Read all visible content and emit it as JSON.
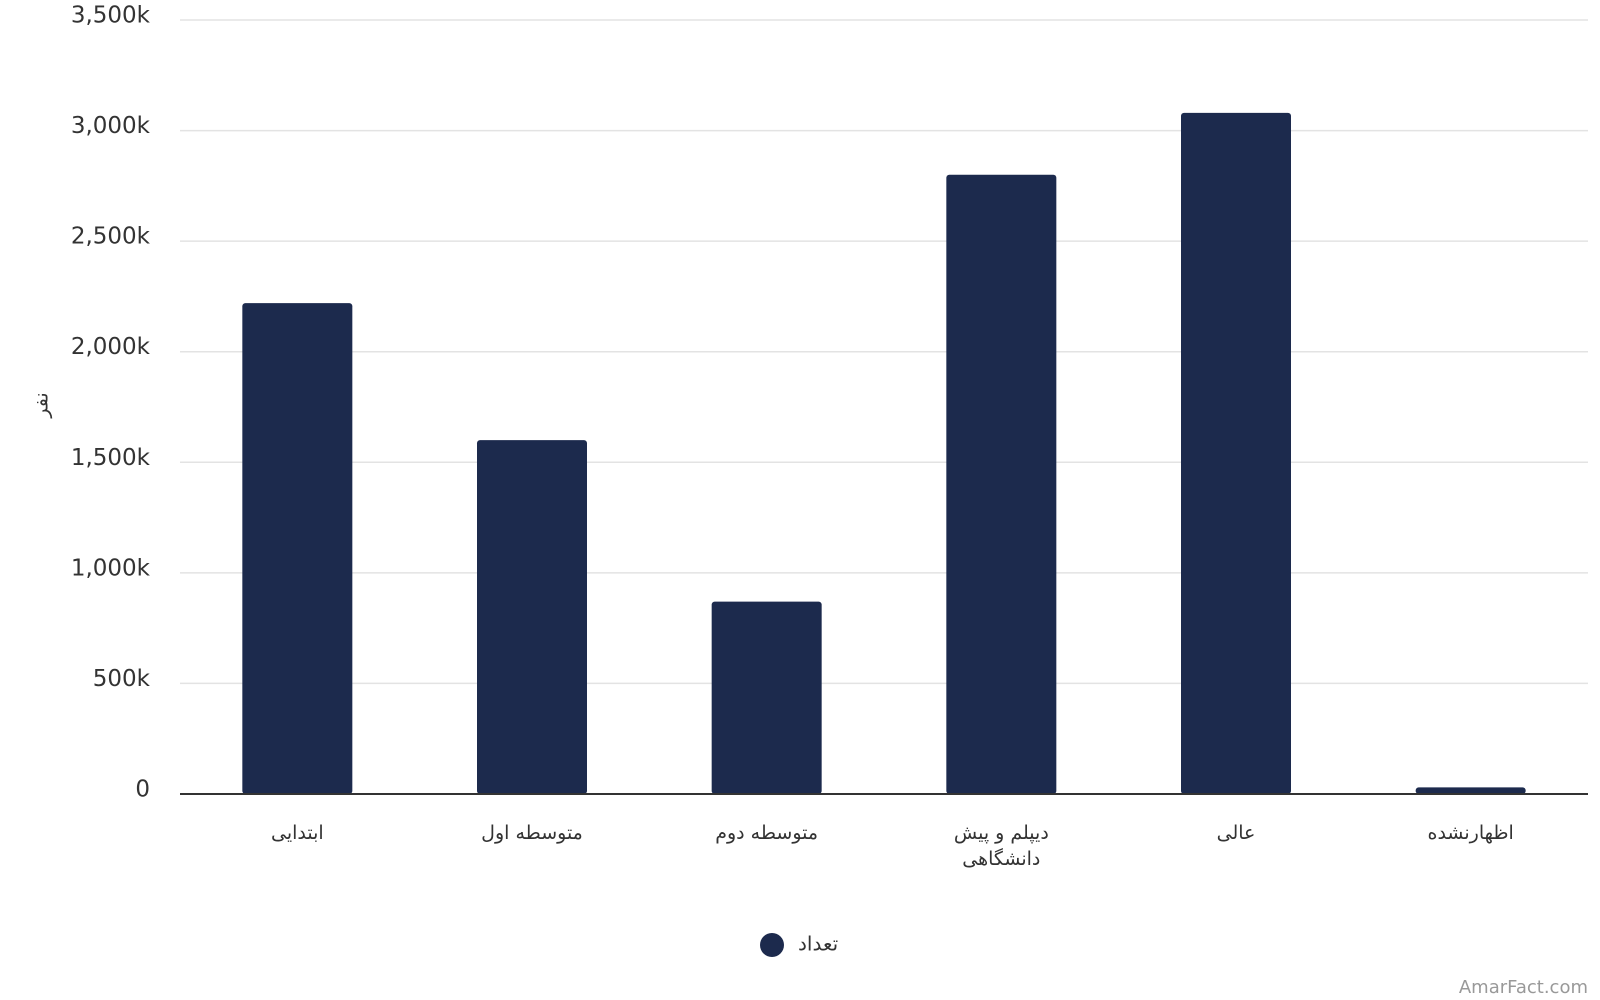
{
  "chart_data": {
    "type": "bar",
    "y_label": "نفر",
    "categories": [
      "ابتدایی",
      "متوسطه اول",
      "متوسطه دوم",
      "دیپلم و پیش دانشگاهی",
      "عالی",
      "اظهارنشده"
    ],
    "series": [
      {
        "name": "تعداد",
        "color": "#1c2a4d",
        "values": [
          2220000,
          1600000,
          870000,
          2800000,
          3080000,
          30000
        ]
      }
    ],
    "ylim": [
      0,
      3500000
    ],
    "yticks": [
      0,
      {
        "value": 500000,
        "label": "500k"
      },
      {
        "value": 1000000,
        "label": "1,000k"
      },
      {
        "value": 1500000,
        "label": "1,500k"
      },
      {
        "value": 2000000,
        "label": "2,000k"
      },
      {
        "value": 2500000,
        "label": "2,500k"
      },
      {
        "value": 3000000,
        "label": "3,000k"
      },
      {
        "value": 3500000,
        "label": "3,500k"
      }
    ],
    "grid": true,
    "legend": "bottom",
    "watermark": "AmarFact.com"
  }
}
